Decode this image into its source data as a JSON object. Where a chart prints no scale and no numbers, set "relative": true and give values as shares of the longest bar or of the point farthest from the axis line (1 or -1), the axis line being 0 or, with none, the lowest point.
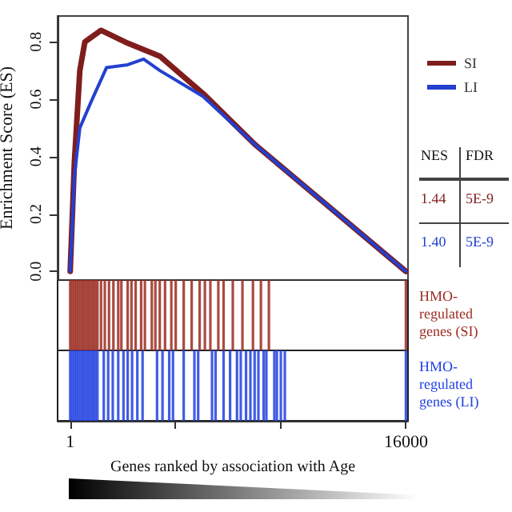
{
  "chart_data": [
    {
      "type": "line",
      "ylabel": "Enrichment Score (ES)",
      "xlim": [
        -600,
        16100
      ],
      "ylim": [
        -0.03,
        0.89
      ],
      "yticks": [
        {
          "value": 0,
          "label": "0.0"
        },
        0.2,
        0.4,
        0.6,
        0.8
      ],
      "tick_labels": "y",
      "legend": "right",
      "marker": "none",
      "line_style": "solid",
      "annotations": [
        "NES",
        "FDR",
        "1.44",
        "5E-9",
        "1.40",
        "5E-9"
      ],
      "series": [
        {
          "name": "SI",
          "color": "#7f1d1d",
          "x": [
            1,
            200,
            460,
            700,
            1470,
            2750,
            4270,
            6330,
            8840,
            16000
          ],
          "values": [
            0,
            0.38,
            0.7,
            0.8,
            0.84,
            0.795,
            0.75,
            0.62,
            0.44,
            0
          ]
        },
        {
          "name": "LI",
          "color": "#2340d0",
          "x": [
            1,
            200,
            460,
            990,
            1730,
            2740,
            3500,
            4270,
            6330,
            8840,
            16000
          ],
          "values": [
            0,
            0.33,
            0.5,
            0.59,
            0.71,
            0.72,
            0.74,
            0.7,
            0.61,
            0.44,
            0
          ]
        }
      ]
    },
    {
      "type": "bar",
      "relative": true,
      "xlim": [
        -600,
        16100
      ],
      "tick_labels": false,
      "series": [
        {
          "name": "HMO-regulated genes (SI)",
          "color": "#9b2a20",
          "x": [
            1,
            100,
            200,
            300,
            400,
            500,
            600,
            700,
            800,
            900,
            1000,
            1100,
            1200,
            1300,
            1470,
            1650,
            1850,
            2060,
            2290,
            2440,
            2740,
            2920,
            3120,
            3380,
            3560,
            3890,
            4060,
            4270,
            4520,
            4820,
            5030,
            5410,
            5790,
            6170,
            6420,
            6680,
            7060,
            7310,
            7750,
            8210,
            8710,
            9090,
            9470,
            16000
          ],
          "values": [
            1,
            1,
            1,
            1,
            1,
            1,
            1,
            1,
            1,
            1,
            1,
            1,
            1,
            1,
            1,
            1,
            1,
            1,
            1,
            1,
            1,
            1,
            1,
            1,
            1,
            1,
            1,
            1,
            1,
            1,
            1,
            1,
            1,
            1,
            1,
            1,
            1,
            1,
            1,
            1,
            1,
            1,
            1,
            1
          ]
        }
      ]
    },
    {
      "type": "bar",
      "relative": true,
      "xlabel": "Genes ranked by association with Age",
      "xlim": [
        -600,
        16100
      ],
      "xticks": [
        1,
        {
          "value": 5000,
          "label": null
        },
        {
          "value": 10000,
          "label": null
        },
        16000
      ],
      "tick_labels": "x",
      "series": [
        {
          "name": "HMO-regulated genes (LI)",
          "color": "#2040e0",
          "x": [
            1,
            100,
            200,
            300,
            400,
            500,
            600,
            700,
            800,
            900,
            1000,
            1100,
            1200,
            1300,
            1600,
            1810,
            2030,
            2290,
            2540,
            2740,
            2950,
            3200,
            3450,
            4140,
            4400,
            4720,
            4900,
            5410,
            5920,
            6100,
            6760,
            6930,
            7310,
            7620,
            7950,
            8130,
            8380,
            8590,
            8790,
            8970,
            9220,
            9350,
            9730,
            9850,
            10040,
            10230,
            16000
          ],
          "values": [
            1,
            1,
            1,
            1,
            1,
            1,
            1,
            1,
            1,
            1,
            1,
            1,
            1,
            1,
            1,
            1,
            1,
            1,
            1,
            1,
            1,
            1,
            1,
            1,
            1,
            1,
            1,
            1,
            1,
            1,
            1,
            1,
            1,
            1,
            1,
            1,
            1,
            1,
            1,
            1,
            1,
            1,
            1,
            1,
            1,
            1,
            1
          ]
        }
      ]
    }
  ]
}
